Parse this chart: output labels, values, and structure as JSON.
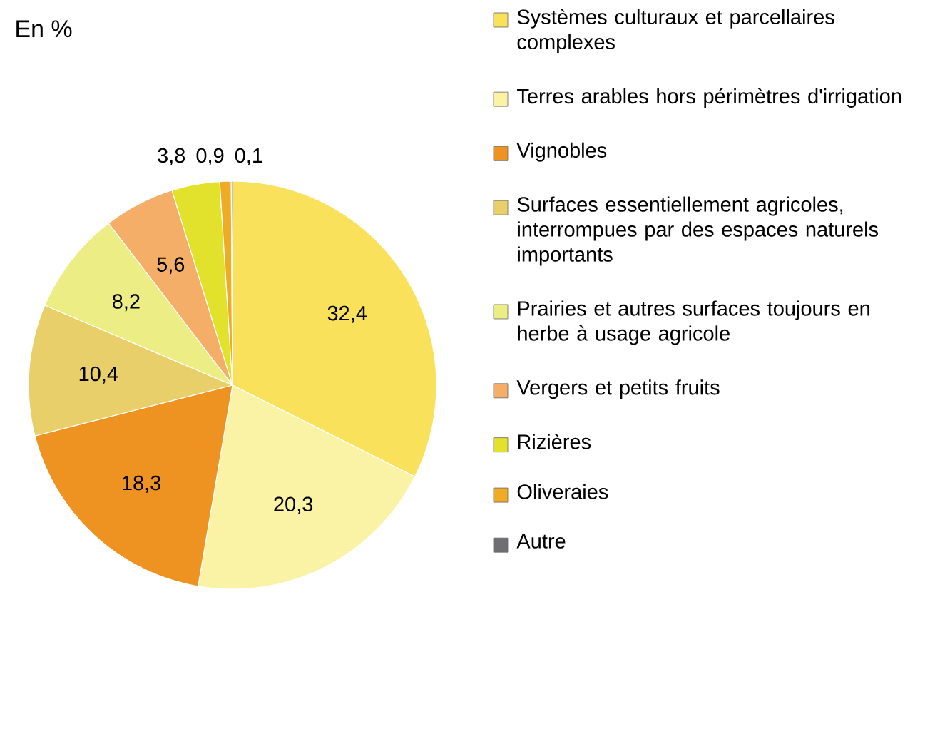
{
  "chart_data": {
    "type": "pie",
    "title": "En %",
    "categories": [
      "Systèmes culturaux et parcellaires complexes",
      "Terres arables hors périmètres d'irrigation",
      "Vignobles",
      "Surfaces essentiellement agricoles, interrompues par des espaces naturels importants",
      "Prairies et autres surfaces toujours en herbe à usage agricole",
      "Vergers et petits fruits",
      "Rizières",
      "Oliveraies",
      "Autre"
    ],
    "values": [
      32.4,
      20.3,
      18.3,
      10.4,
      8.2,
      5.6,
      3.8,
      0.9,
      0.1
    ],
    "value_labels": [
      "32,4",
      "20,3",
      "18,3",
      "10,4",
      "8,2",
      "5,6",
      "3,8",
      "0,9",
      "0,1"
    ],
    "colors": [
      "#f9e15b",
      "#faf3a5",
      "#ee9322",
      "#e8cf6a",
      "#eced85",
      "#f5ae67",
      "#e2e22d",
      "#eeab23",
      "#6f6e70"
    ],
    "legend": "right"
  }
}
